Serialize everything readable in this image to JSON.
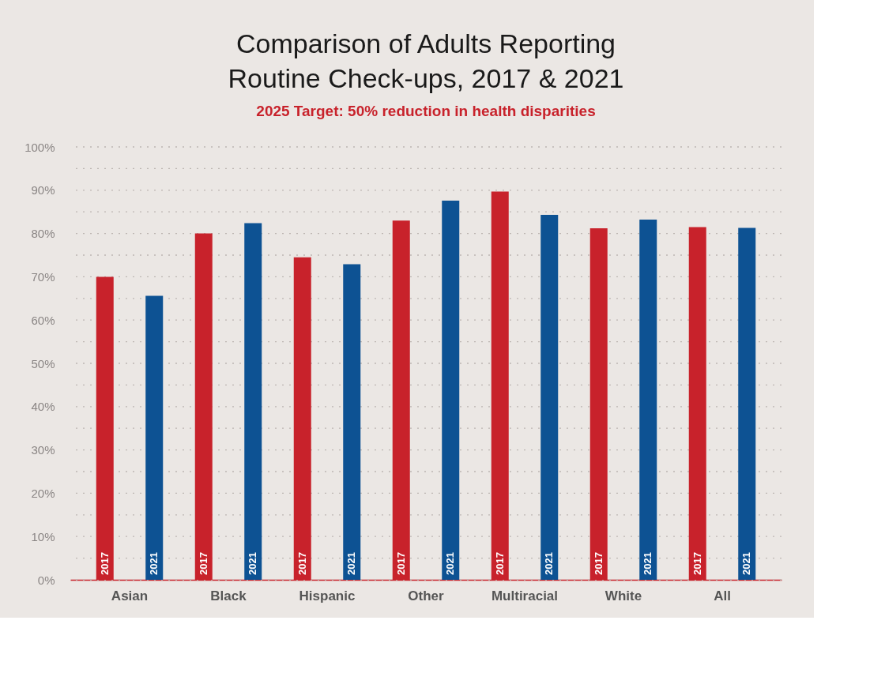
{
  "chart_data": {
    "type": "bar",
    "title": "Comparison of Adults Reporting Routine Check-ups, 2017 & 2021",
    "subtitle": "2025 Target: 50% reduction in health disparities",
    "categories": [
      "Asian",
      "Black",
      "Hispanic",
      "Other",
      "Multiracial",
      "White",
      "All"
    ],
    "series": [
      {
        "name": "2017",
        "color": "#c8222b",
        "values": [
          70,
          80,
          74.5,
          83,
          89.7,
          81.2,
          81.5
        ]
      },
      {
        "name": "2021",
        "color": "#0d5293",
        "values": [
          65.6,
          82.4,
          72.9,
          87.6,
          84.3,
          83.2,
          81.3
        ]
      }
    ],
    "ylim": [
      0,
      100
    ],
    "yticks": [
      {
        "value": 0,
        "label": "0%"
      },
      {
        "value": 5,
        "label": null
      },
      {
        "value": 10,
        "label": "10%"
      },
      {
        "value": 15,
        "label": null
      },
      {
        "value": 20,
        "label": "20%"
      },
      {
        "value": 25,
        "label": null
      },
      {
        "value": 30,
        "label": "30%"
      },
      {
        "value": 35,
        "label": null
      },
      {
        "value": 40,
        "label": "40%"
      },
      {
        "value": 45,
        "label": null
      },
      {
        "value": 50,
        "label": "50%"
      },
      {
        "value": 55,
        "label": null
      },
      {
        "value": 60,
        "label": "60%"
      },
      {
        "value": 65,
        "label": null
      },
      {
        "value": 70,
        "label": "70%"
      },
      {
        "value": 75,
        "label": null
      },
      {
        "value": 80,
        "label": "80%"
      },
      {
        "value": 85,
        "label": null
      },
      {
        "value": 90,
        "label": "90%"
      },
      {
        "value": 95,
        "label": null
      },
      {
        "value": 100,
        "label": "100%"
      }
    ],
    "grid": "y",
    "legend": false
  }
}
